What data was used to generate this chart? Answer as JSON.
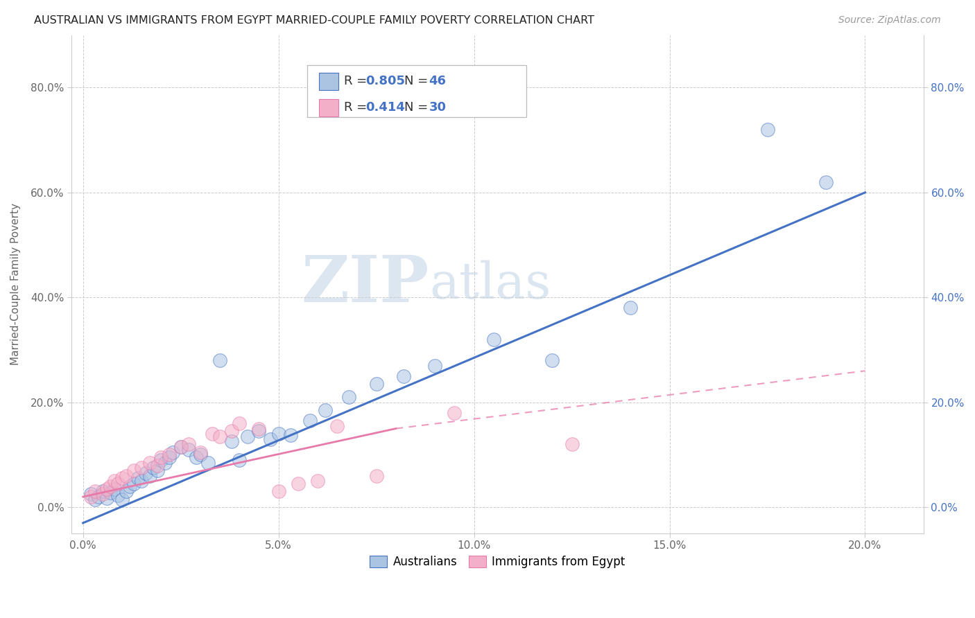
{
  "title": "AUSTRALIAN VS IMMIGRANTS FROM EGYPT MARRIED-COUPLE FAMILY POVERTY CORRELATION CHART",
  "source": "Source: ZipAtlas.com",
  "xlabel_tick_vals": [
    0.0,
    5.0,
    10.0,
    15.0,
    20.0
  ],
  "ylabel": "Married-Couple Family Poverty",
  "ylabel_tick_vals": [
    0.0,
    20.0,
    40.0,
    60.0,
    80.0
  ],
  "xlim": [
    -0.3,
    21.5
  ],
  "ylim": [
    -5.0,
    90.0
  ],
  "R_aus": 0.805,
  "N_aus": 46,
  "R_egy": 0.414,
  "N_egy": 30,
  "color_aus": "#aac4e2",
  "color_egy": "#f4afc8",
  "line_color_aus": "#4472c4",
  "line_color_egy": "#e87aaa",
  "watermark_zip": "ZIP",
  "watermark_atlas": "atlas",
  "watermark_color": "#dce6f0",
  "scatter_aus_x": [
    0.2,
    0.3,
    0.4,
    0.5,
    0.6,
    0.7,
    0.8,
    0.9,
    1.0,
    1.1,
    1.2,
    1.3,
    1.4,
    1.5,
    1.6,
    1.7,
    1.8,
    1.9,
    2.0,
    2.1,
    2.2,
    2.3,
    2.5,
    2.7,
    2.9,
    3.0,
    3.2,
    3.5,
    3.8,
    4.0,
    4.2,
    4.5,
    4.8,
    5.0,
    5.3,
    5.8,
    6.2,
    6.8,
    7.5,
    8.2,
    9.0,
    10.5,
    12.0,
    14.0,
    17.5,
    19.0
  ],
  "scatter_aus_y": [
    2.5,
    1.5,
    2.0,
    3.0,
    1.8,
    2.8,
    3.5,
    2.2,
    1.5,
    3.0,
    4.0,
    4.5,
    5.5,
    5.0,
    6.5,
    6.0,
    7.5,
    7.0,
    9.0,
    8.5,
    9.5,
    10.5,
    11.5,
    11.0,
    9.5,
    10.0,
    8.5,
    28.0,
    12.5,
    9.0,
    13.5,
    14.5,
    13.0,
    14.0,
    13.8,
    16.5,
    18.5,
    21.0,
    23.5,
    25.0,
    27.0,
    32.0,
    28.0,
    38.0,
    72.0,
    62.0
  ],
  "scatter_egy_x": [
    0.2,
    0.3,
    0.5,
    0.6,
    0.7,
    0.8,
    0.9,
    1.0,
    1.1,
    1.3,
    1.5,
    1.7,
    1.9,
    2.0,
    2.2,
    2.5,
    2.7,
    3.0,
    3.3,
    3.5,
    3.8,
    4.0,
    4.5,
    5.0,
    5.5,
    6.0,
    6.5,
    7.5,
    9.5,
    12.5
  ],
  "scatter_egy_y": [
    2.0,
    3.0,
    2.5,
    3.5,
    4.0,
    5.0,
    4.5,
    5.5,
    6.0,
    7.0,
    7.5,
    8.5,
    8.0,
    9.5,
    10.0,
    11.5,
    12.0,
    10.5,
    14.0,
    13.5,
    14.5,
    16.0,
    15.0,
    3.0,
    4.5,
    5.0,
    15.5,
    6.0,
    18.0,
    12.0
  ],
  "reg_aus_x0": 0.0,
  "reg_aus_y0": -3.0,
  "reg_aus_x1": 20.0,
  "reg_aus_y1": 60.0,
  "reg_egy_solid_x0": 0.0,
  "reg_egy_solid_y0": 2.0,
  "reg_egy_solid_x1": 8.0,
  "reg_egy_solid_y1": 15.0,
  "reg_egy_dash_x0": 8.0,
  "reg_egy_dash_y0": 15.0,
  "reg_egy_dash_x1": 20.0,
  "reg_egy_dash_y1": 26.0
}
